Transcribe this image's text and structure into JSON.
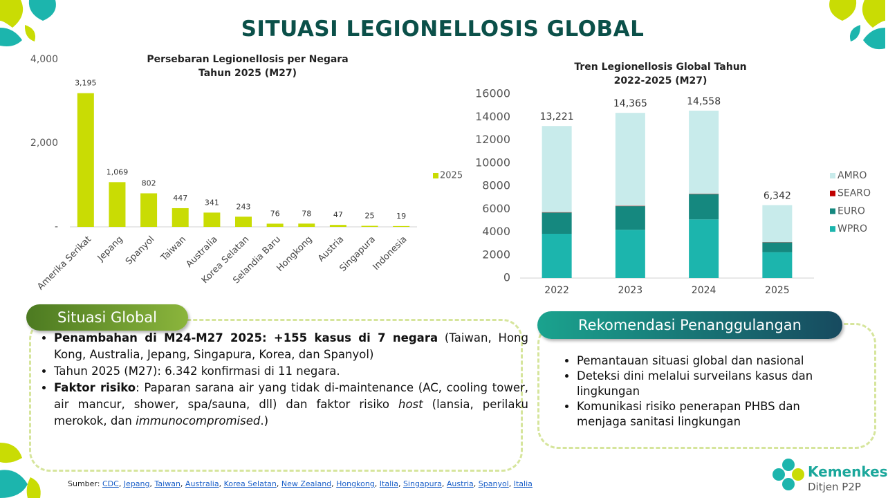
{
  "header": {
    "title": "SITUASI LEGIONELLOSIS GLOBAL"
  },
  "chart_data": [
    {
      "type": "bar",
      "title": [
        "Persebaran Legionellosis per Negara",
        "Tahun 2025 (M27)"
      ],
      "categories": [
        "Amerika Serikat",
        "Jepang",
        "Spanyol",
        "Taiwan",
        "Australia",
        "Korea Selatan",
        "Selandia Baru",
        "Hongkong",
        "Austria",
        "Singapura",
        "Indonesia"
      ],
      "series": [
        {
          "name": "2025",
          "color": "#c9dc04",
          "values": [
            3195,
            1069,
            802,
            447,
            341,
            243,
            76,
            78,
            47,
            25,
            19
          ],
          "value_labels": [
            "3,195",
            "1,069",
            "802",
            "447",
            "341",
            "243",
            "76",
            "78",
            "47",
            "25",
            "19"
          ]
        }
      ],
      "ylim": [
        0,
        4000
      ],
      "yticks": [
        {
          "value": 0,
          "label": "-"
        },
        {
          "value": 2000,
          "label": "2,000"
        },
        {
          "value": 4000,
          "label": "4,000"
        }
      ],
      "legend": "right"
    },
    {
      "type": "stacked_bar",
      "title": [
        "Tren Legionellosis Global Tahun",
        "2022-2025 (M27)"
      ],
      "categories": [
        "2022",
        "2023",
        "2024",
        "2025"
      ],
      "series": [
        {
          "name": "WPRO",
          "color": "#1cb5ad",
          "values": [
            3850,
            4200,
            5100,
            2250
          ]
        },
        {
          "name": "EURO",
          "color": "#15887f",
          "values": [
            1850,
            2050,
            2200,
            850
          ]
        },
        {
          "name": "SEARO",
          "color": "#c00000",
          "values": [
            30,
            30,
            30,
            20
          ]
        },
        {
          "name": "AMRO",
          "color": "#c8ebeb",
          "values": [
            7491,
            8085,
            7228,
            3222
          ]
        }
      ],
      "totals": [
        13221,
        14365,
        14558,
        6342
      ],
      "total_labels": [
        "13,221",
        "14,365",
        "14,558",
        "6,342"
      ],
      "ylim": [
        0,
        16000
      ],
      "yticks": [
        0,
        2000,
        4000,
        6000,
        8000,
        10000,
        12000,
        14000,
        16000
      ],
      "legend": "right"
    }
  ],
  "sections": [
    {
      "title": "Situasi Global",
      "bullets": [
        [
          {
            "text": "Penambahan di M24-M27 2025: +155 kasus di 7 negara",
            "bold": true
          },
          {
            "text": " (Taiwan, Hong Kong, Australia, Jepang, Singapura, Korea, dan Spanyol)"
          }
        ],
        [
          {
            "text": "Tahun 2025 (M27): 6.342 konfirmasi di 11 negara."
          }
        ],
        [
          {
            "text": "Faktor risiko",
            "bold": true
          },
          {
            "text": ": Paparan sarana air yang tidak di-maintenance (AC, cooling tower, air mancur, shower, spa/sauna, dll) dan faktor risiko "
          },
          {
            "text": "host",
            "italic": true
          },
          {
            "text": " (lansia, perilaku merokok, dan "
          },
          {
            "text": "immunocompromised",
            "italic": true
          },
          {
            "text": ".)"
          }
        ]
      ]
    },
    {
      "title": "Rekomendasi Penanggulangan",
      "bullets": [
        [
          {
            "text": "Pemantauan situasi global dan nasional"
          }
        ],
        [
          {
            "text": "Deteksi dini melalui surveilans kasus dan lingkungan"
          }
        ],
        [
          {
            "text": "Komunikasi risiko penerapan PHBS dan menjaga sanitasi lingkungan"
          }
        ]
      ]
    }
  ],
  "source": {
    "label": "Sumber:",
    "separator": ", ",
    "links": [
      "CDC",
      "Jepang",
      "Taiwan",
      "Australia",
      "Korea Selatan",
      "New Zealand",
      "Hongkong",
      "Italia",
      "Singapura",
      "Austria",
      "Spanyol",
      "Italia"
    ]
  },
  "logo": {
    "name": "Kemenkes",
    "unit": "Ditjen P2P"
  }
}
